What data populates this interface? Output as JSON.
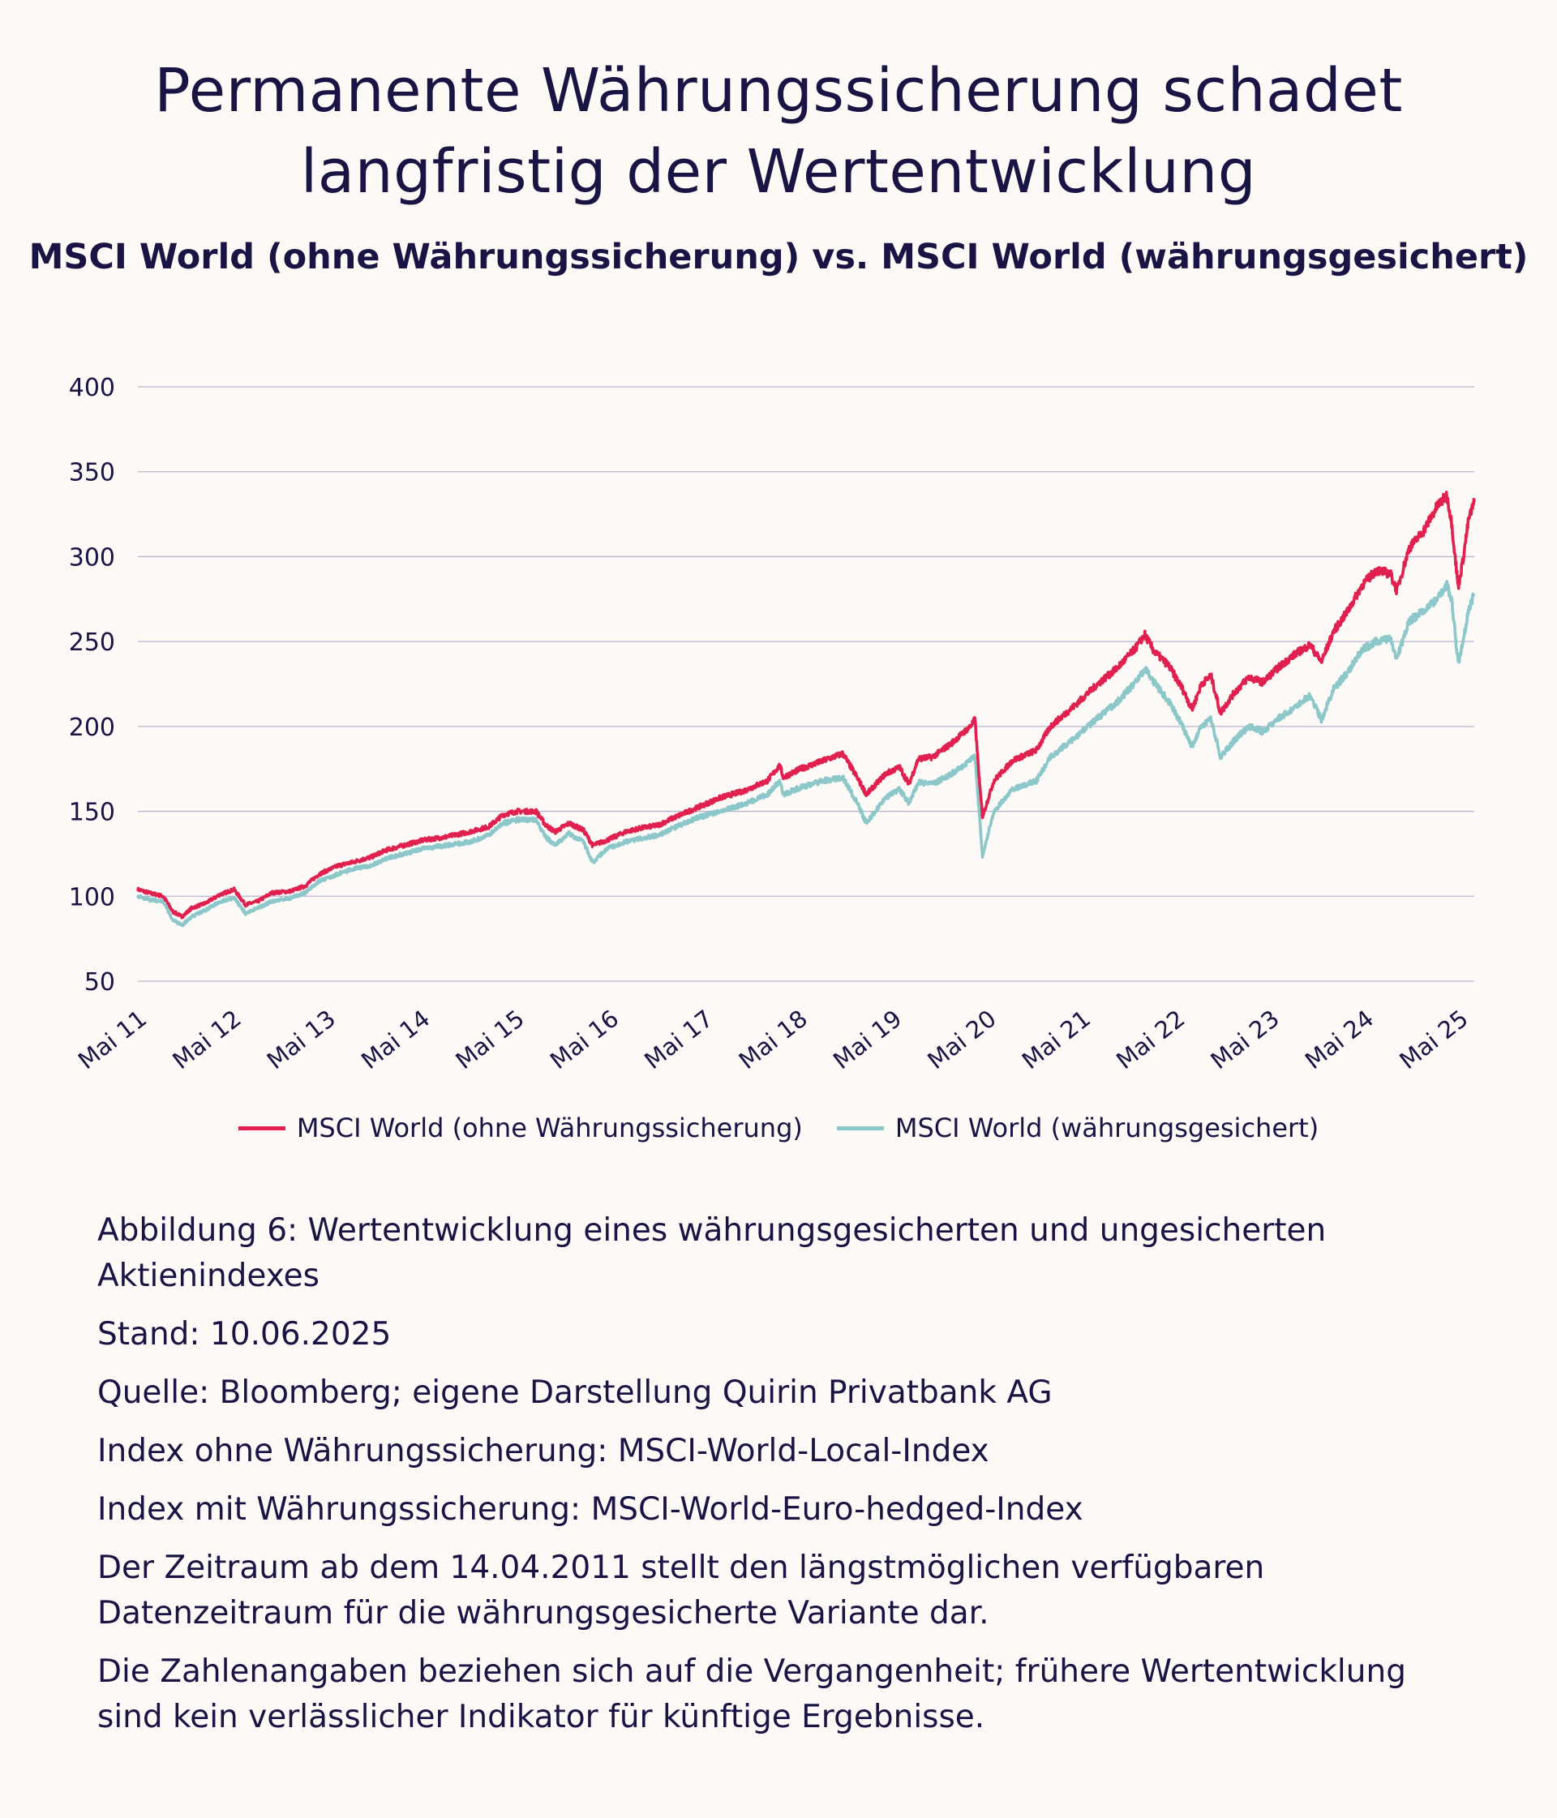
{
  "title_lines": [
    "Permanente Währungssicherung schadet",
    "langfristig der Wertentwicklung"
  ],
  "subtitle": "MSCI World (ohne Währungssicherung) vs. MSCI World (währungsgesichert)",
  "chart_data": {
    "type": "line",
    "y_ticks": [
      400,
      350,
      300,
      250,
      200,
      150,
      100,
      50
    ],
    "ylim": [
      50,
      400
    ],
    "x_ticks": [
      "Mai 11",
      "Mai 12",
      "Mai 13",
      "Mai 14",
      "Mai 15",
      "Mai 16",
      "Mai 17",
      "Mai 18",
      "Mai 19",
      "Mai 20",
      "Mai 21",
      "Mai 22",
      "Mai 23",
      "Mai 24",
      "Mai 25"
    ],
    "xlim": [
      2011.28,
      2025.44
    ],
    "grid": "horizontal",
    "legend_position": "bottom",
    "series": [
      {
        "name": "MSCI World (ohne Währungssicherung)",
        "color": "#e0204f",
        "points": [
          [
            2011.28,
            104
          ],
          [
            2011.4,
            102
          ],
          [
            2011.55,
            100
          ],
          [
            2011.65,
            91
          ],
          [
            2011.75,
            88
          ],
          [
            2011.85,
            93
          ],
          [
            2012.0,
            96
          ],
          [
            2012.15,
            101
          ],
          [
            2012.3,
            104
          ],
          [
            2012.42,
            95
          ],
          [
            2012.55,
            97
          ],
          [
            2012.7,
            102
          ],
          [
            2012.9,
            103
          ],
          [
            2013.05,
            106
          ],
          [
            2013.2,
            113
          ],
          [
            2013.4,
            118
          ],
          [
            2013.55,
            120
          ],
          [
            2013.75,
            123
          ],
          [
            2013.9,
            127
          ],
          [
            2014.1,
            130
          ],
          [
            2014.3,
            133
          ],
          [
            2014.55,
            135
          ],
          [
            2014.8,
            138
          ],
          [
            2015.0,
            141
          ],
          [
            2015.15,
            148
          ],
          [
            2015.3,
            150
          ],
          [
            2015.5,
            150
          ],
          [
            2015.6,
            142
          ],
          [
            2015.7,
            138
          ],
          [
            2015.85,
            143
          ],
          [
            2016.0,
            139
          ],
          [
            2016.1,
            130
          ],
          [
            2016.25,
            133
          ],
          [
            2016.45,
            138
          ],
          [
            2016.6,
            140
          ],
          [
            2016.8,
            142
          ],
          [
            2016.95,
            146
          ],
          [
            2017.2,
            152
          ],
          [
            2017.45,
            158
          ],
          [
            2017.7,
            162
          ],
          [
            2017.95,
            168
          ],
          [
            2018.08,
            177
          ],
          [
            2018.12,
            170
          ],
          [
            2018.3,
            175
          ],
          [
            2018.55,
            180
          ],
          [
            2018.75,
            184
          ],
          [
            2018.9,
            170
          ],
          [
            2019.0,
            160
          ],
          [
            2019.2,
            172
          ],
          [
            2019.35,
            176
          ],
          [
            2019.45,
            166
          ],
          [
            2019.55,
            181
          ],
          [
            2019.7,
            182
          ],
          [
            2019.9,
            190
          ],
          [
            2020.1,
            200
          ],
          [
            2020.15,
            204
          ],
          [
            2020.2,
            165
          ],
          [
            2020.23,
            147
          ],
          [
            2020.35,
            168
          ],
          [
            2020.55,
            180
          ],
          [
            2020.8,
            186
          ],
          [
            2020.95,
            200
          ],
          [
            2021.2,
            212
          ],
          [
            2021.45,
            225
          ],
          [
            2021.65,
            234
          ],
          [
            2021.85,
            246
          ],
          [
            2021.95,
            254
          ],
          [
            2022.05,
            244
          ],
          [
            2022.2,
            236
          ],
          [
            2022.35,
            222
          ],
          [
            2022.45,
            210
          ],
          [
            2022.55,
            225
          ],
          [
            2022.65,
            230
          ],
          [
            2022.75,
            208
          ],
          [
            2022.9,
            220
          ],
          [
            2023.05,
            229
          ],
          [
            2023.2,
            226
          ],
          [
            2023.35,
            234
          ],
          [
            2023.55,
            243
          ],
          [
            2023.7,
            248
          ],
          [
            2023.82,
            238
          ],
          [
            2023.95,
            256
          ],
          [
            2024.1,
            268
          ],
          [
            2024.25,
            283
          ],
          [
            2024.4,
            292
          ],
          [
            2024.55,
            290
          ],
          [
            2024.62,
            280
          ],
          [
            2024.75,
            305
          ],
          [
            2024.9,
            315
          ],
          [
            2025.05,
            330
          ],
          [
            2025.15,
            336
          ],
          [
            2025.2,
            320
          ],
          [
            2025.27,
            282
          ],
          [
            2025.32,
            298
          ],
          [
            2025.38,
            322
          ],
          [
            2025.44,
            332
          ]
        ]
      },
      {
        "name": "MSCI World (währungsgesichert)",
        "color": "#8cc7c9",
        "points": [
          [
            2011.28,
            100
          ],
          [
            2011.4,
            98
          ],
          [
            2011.55,
            97
          ],
          [
            2011.65,
            86
          ],
          [
            2011.75,
            83
          ],
          [
            2011.85,
            88
          ],
          [
            2012.0,
            92
          ],
          [
            2012.15,
            97
          ],
          [
            2012.3,
            99
          ],
          [
            2012.42,
            90
          ],
          [
            2012.55,
            93
          ],
          [
            2012.7,
            97
          ],
          [
            2012.9,
            99
          ],
          [
            2013.05,
            102
          ],
          [
            2013.2,
            109
          ],
          [
            2013.4,
            113
          ],
          [
            2013.55,
            116
          ],
          [
            2013.75,
            118
          ],
          [
            2013.9,
            122
          ],
          [
            2014.1,
            125
          ],
          [
            2014.3,
            128
          ],
          [
            2014.55,
            130
          ],
          [
            2014.8,
            132
          ],
          [
            2015.0,
            136
          ],
          [
            2015.15,
            143
          ],
          [
            2015.3,
            145
          ],
          [
            2015.5,
            145
          ],
          [
            2015.6,
            135
          ],
          [
            2015.7,
            130
          ],
          [
            2015.85,
            137
          ],
          [
            2016.0,
            132
          ],
          [
            2016.1,
            120
          ],
          [
            2016.25,
            128
          ],
          [
            2016.45,
            132
          ],
          [
            2016.6,
            134
          ],
          [
            2016.8,
            136
          ],
          [
            2016.95,
            140
          ],
          [
            2017.2,
            146
          ],
          [
            2017.45,
            150
          ],
          [
            2017.7,
            154
          ],
          [
            2017.95,
            160
          ],
          [
            2018.08,
            168
          ],
          [
            2018.12,
            160
          ],
          [
            2018.3,
            164
          ],
          [
            2018.55,
            168
          ],
          [
            2018.75,
            170
          ],
          [
            2018.9,
            155
          ],
          [
            2019.0,
            143
          ],
          [
            2019.2,
            158
          ],
          [
            2019.35,
            163
          ],
          [
            2019.45,
            155
          ],
          [
            2019.55,
            167
          ],
          [
            2019.7,
            166
          ],
          [
            2019.9,
            172
          ],
          [
            2020.1,
            180
          ],
          [
            2020.15,
            183
          ],
          [
            2020.2,
            145
          ],
          [
            2020.23,
            124
          ],
          [
            2020.35,
            150
          ],
          [
            2020.55,
            163
          ],
          [
            2020.8,
            168
          ],
          [
            2020.95,
            182
          ],
          [
            2021.2,
            193
          ],
          [
            2021.45,
            205
          ],
          [
            2021.65,
            214
          ],
          [
            2021.85,
            226
          ],
          [
            2021.95,
            234
          ],
          [
            2022.05,
            226
          ],
          [
            2022.2,
            215
          ],
          [
            2022.35,
            200
          ],
          [
            2022.45,
            188
          ],
          [
            2022.55,
            200
          ],
          [
            2022.65,
            205
          ],
          [
            2022.75,
            182
          ],
          [
            2022.9,
            192
          ],
          [
            2023.05,
            200
          ],
          [
            2023.2,
            197
          ],
          [
            2023.35,
            204
          ],
          [
            2023.55,
            212
          ],
          [
            2023.7,
            218
          ],
          [
            2023.82,
            204
          ],
          [
            2023.95,
            222
          ],
          [
            2024.1,
            232
          ],
          [
            2024.25,
            245
          ],
          [
            2024.4,
            250
          ],
          [
            2024.55,
            252
          ],
          [
            2024.62,
            240
          ],
          [
            2024.75,
            262
          ],
          [
            2024.9,
            268
          ],
          [
            2025.05,
            275
          ],
          [
            2025.15,
            283
          ],
          [
            2025.2,
            275
          ],
          [
            2025.27,
            237
          ],
          [
            2025.32,
            250
          ],
          [
            2025.38,
            268
          ],
          [
            2025.44,
            278
          ]
        ]
      }
    ]
  },
  "legend": {
    "items": [
      {
        "label": "MSCI World (ohne Währungssicherung)",
        "color": "#e0204f"
      },
      {
        "label": "MSCI World (währungsgesichert)",
        "color": "#8cc7c9"
      }
    ]
  },
  "notes": {
    "caption": "Abbildung 6: Wertentwicklung eines währungsgesicherten und ungesicherten Aktienindexes",
    "stand": "Stand: 10.06.2025",
    "quelle": "Quelle: Bloomberg; eigene Darstellung Quirin Privatbank AG",
    "index_ohne": "Index ohne Währungssicherung: MSCI-World-Local-Index",
    "index_mit": "Index mit Währungssicherung: MSCI-World-Euro-hedged-Index",
    "zeitraum": "Der Zeitraum ab dem 14.04.2011 stellt den längstmöglichen verfügbaren Datenzeitraum für die währungsgesicherte Variante dar.",
    "disclaimer": "Die Zahlenangaben beziehen sich auf die Vergangenheit; frühere Wertentwicklung sind kein verlässlicher Indikator für künftige Ergebnisse."
  }
}
